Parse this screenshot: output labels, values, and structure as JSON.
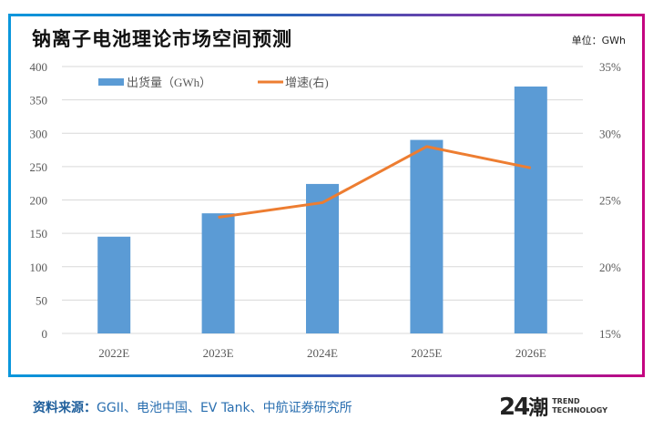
{
  "header": {
    "title": "钠离子电池理论市场空间预测",
    "unit": "单位：GWh"
  },
  "footer": {
    "source_label": "资料来源：",
    "source_text": "GGII、电池中国、EV Tank、中航证券研究所",
    "logo_text": "24潮",
    "logo_sub1": "TREND",
    "logo_sub2": "TECHNOLOGY"
  },
  "chart_data": {
    "type": "bar+line",
    "categories": [
      "2022E",
      "2023E",
      "2024E",
      "2025E",
      "2026E"
    ],
    "series": [
      {
        "name": "出货量（GWh）",
        "type": "bar",
        "axis": "left",
        "color": "#5b9bd5",
        "values": [
          145,
          180,
          224,
          290,
          370
        ]
      },
      {
        "name": "增速(右)",
        "type": "line",
        "axis": "right",
        "color": "#ed7d31",
        "values": [
          null,
          23.7,
          24.8,
          29.0,
          27.4
        ]
      }
    ],
    "y_left": {
      "min": 0,
      "max": 400,
      "ticks": [
        0,
        50,
        100,
        150,
        200,
        250,
        300,
        350,
        400
      ]
    },
    "y_right": {
      "min": 15,
      "max": 35,
      "ticks": [
        "15%",
        "20%",
        "25%",
        "30%",
        "35%"
      ]
    },
    "grid": true,
    "legend": "top-left"
  }
}
